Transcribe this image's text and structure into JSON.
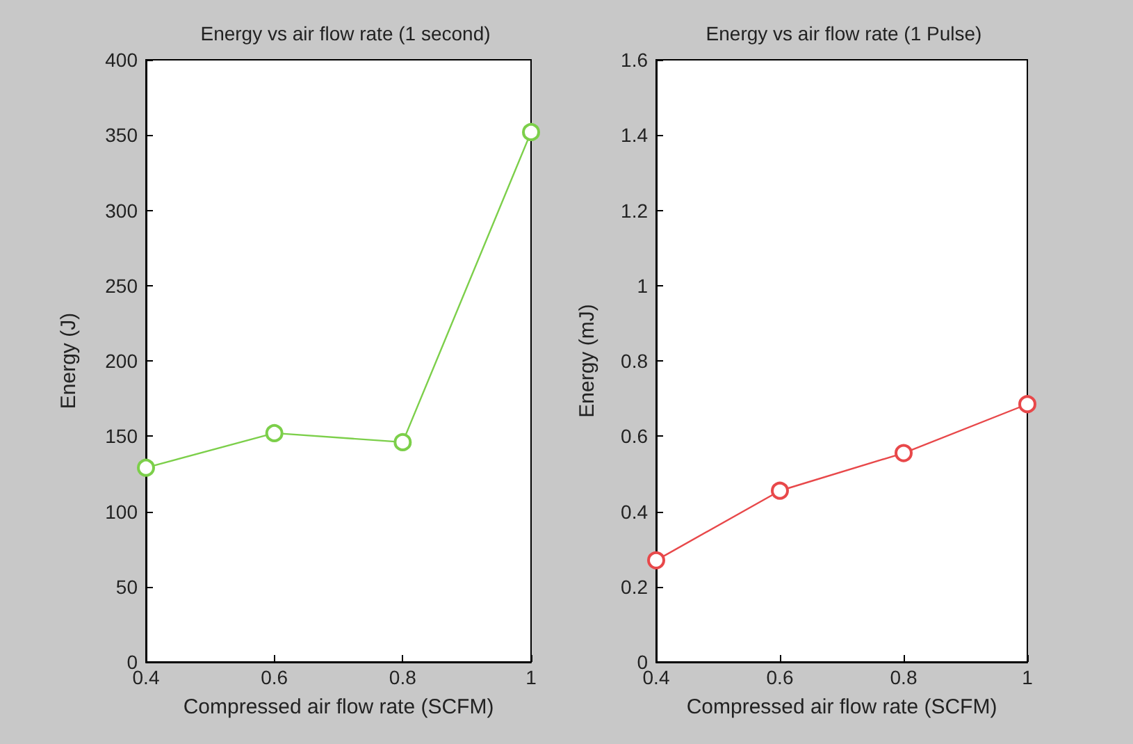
{
  "chart_data": [
    {
      "type": "line",
      "title": "Energy vs air flow rate (1 second)",
      "xlabel": "Compressed air flow rate (SCFM)",
      "ylabel": "Energy (J)",
      "x": [
        0.4,
        0.6,
        0.8,
        1
      ],
      "series": [
        {
          "color": "#7ccf4a",
          "values": [
            129,
            152,
            146,
            352
          ]
        }
      ],
      "xlim": [
        0.4,
        1
      ],
      "xticks": [
        0.4,
        0.6,
        0.8,
        1
      ],
      "ylim": [
        0,
        400
      ],
      "yticks": [
        0,
        50,
        100,
        150,
        200,
        250,
        300,
        350,
        400
      ],
      "marker": "circle"
    },
    {
      "type": "line",
      "title": "Energy vs air flow rate (1 Pulse)",
      "xlabel": "Compressed air flow rate (SCFM)",
      "ylabel": "Energy (mJ)",
      "x": [
        0.4,
        0.6,
        0.8,
        1
      ],
      "series": [
        {
          "color": "#e8484a",
          "values": [
            0.27,
            0.455,
            0.555,
            0.685
          ]
        }
      ],
      "xlim": [
        0.4,
        1
      ],
      "xticks": [
        0.4,
        0.6,
        0.8,
        1
      ],
      "ylim": [
        0,
        1.6
      ],
      "yticks": [
        0,
        0.2,
        0.4,
        0.6,
        0.8,
        1,
        1.2,
        1.4,
        1.6
      ],
      "marker": "circle"
    }
  ]
}
